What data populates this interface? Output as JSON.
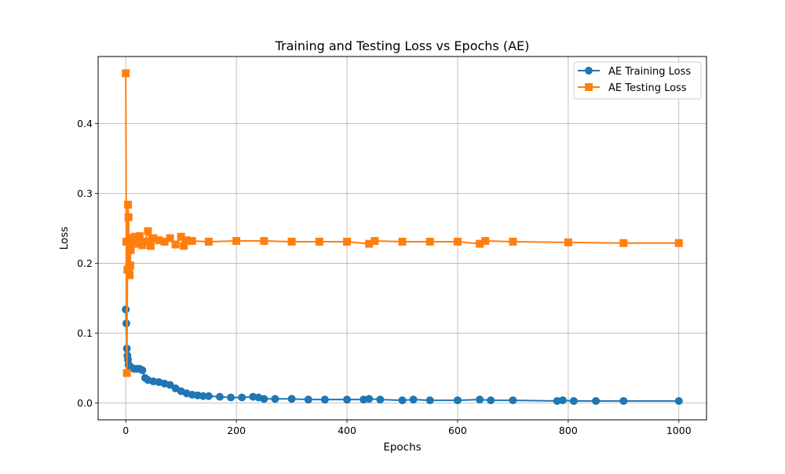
{
  "chart_data": {
    "type": "line",
    "title": "Training and Testing Loss vs Epochs (AE)",
    "xlabel": "Epochs",
    "ylabel": "Loss",
    "xlim": [
      -50,
      1050
    ],
    "ylim": [
      -0.024,
      0.496
    ],
    "xticks": [
      0,
      200,
      400,
      600,
      800,
      1000
    ],
    "xtick_labels": [
      "0",
      "200",
      "400",
      "600",
      "800",
      "1000"
    ],
    "yticks": [
      0.0,
      0.1,
      0.2,
      0.3,
      0.4
    ],
    "ytick_labels": [
      "0.0",
      "0.1",
      "0.2",
      "0.3",
      "0.4"
    ],
    "grid": true,
    "legend_position": "top-right",
    "series": [
      {
        "name": "AE Training Loss",
        "color": "#1f77b4",
        "marker": "circle",
        "x": [
          0,
          1,
          2,
          3,
          4,
          5,
          6,
          8,
          10,
          15,
          20,
          25,
          30,
          35,
          40,
          50,
          60,
          70,
          80,
          90,
          100,
          110,
          120,
          130,
          140,
          150,
          170,
          190,
          210,
          230,
          240,
          250,
          270,
          300,
          330,
          360,
          400,
          430,
          440,
          460,
          500,
          520,
          550,
          600,
          640,
          660,
          700,
          780,
          790,
          810,
          850,
          900,
          1000
        ],
        "y": [
          0.134,
          0.114,
          0.078,
          0.068,
          0.062,
          0.055,
          0.054,
          0.052,
          0.051,
          0.049,
          0.049,
          0.049,
          0.047,
          0.036,
          0.033,
          0.031,
          0.03,
          0.028,
          0.026,
          0.021,
          0.017,
          0.014,
          0.012,
          0.011,
          0.01,
          0.01,
          0.009,
          0.008,
          0.008,
          0.009,
          0.008,
          0.006,
          0.006,
          0.006,
          0.005,
          0.005,
          0.005,
          0.005,
          0.006,
          0.005,
          0.004,
          0.005,
          0.004,
          0.004,
          0.005,
          0.004,
          0.004,
          0.003,
          0.004,
          0.003,
          0.003,
          0.003,
          0.003
        ]
      },
      {
        "name": "AE Testing Loss",
        "color": "#ff7f0e",
        "marker": "square",
        "x": [
          0,
          1,
          2,
          3,
          4,
          5,
          6,
          7,
          8,
          9,
          10,
          12,
          14,
          16,
          18,
          20,
          25,
          30,
          35,
          40,
          45,
          50,
          60,
          70,
          80,
          90,
          100,
          105,
          110,
          120,
          150,
          200,
          250,
          300,
          350,
          400,
          440,
          450,
          500,
          550,
          600,
          640,
          650,
          700,
          800,
          900,
          1000
        ],
        "y": [
          0.472,
          0.231,
          0.043,
          0.191,
          0.284,
          0.266,
          0.194,
          0.183,
          0.197,
          0.219,
          0.229,
          0.236,
          0.232,
          0.238,
          0.228,
          0.235,
          0.239,
          0.226,
          0.231,
          0.246,
          0.225,
          0.236,
          0.233,
          0.231,
          0.236,
          0.227,
          0.238,
          0.225,
          0.233,
          0.232,
          0.231,
          0.232,
          0.232,
          0.231,
          0.231,
          0.231,
          0.228,
          0.232,
          0.231,
          0.231,
          0.231,
          0.228,
          0.232,
          0.231,
          0.23,
          0.229,
          0.229
        ]
      }
    ]
  }
}
